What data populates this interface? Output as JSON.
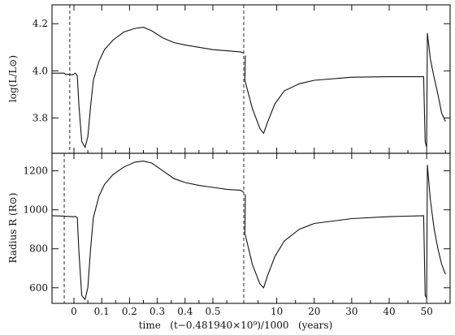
{
  "chart_data": [
    {
      "type": "line",
      "panel": "top",
      "ylabel": "log(L/L⊙)",
      "ylim": [
        3.65,
        4.28
      ],
      "yticks": [
        3.8,
        4.0,
        4.2
      ],
      "ytick_labels": [
        "3.8",
        "4.0",
        "4.2"
      ],
      "series": [
        {
          "segment": "early",
          "x": [
            -0.08,
            -0.035,
            -0.03,
            -0.015,
            -0.005,
            0.005,
            0.012,
            0.018,
            0.028,
            0.04,
            0.05,
            0.06,
            0.07,
            0.09,
            0.11,
            0.14,
            0.18,
            0.22,
            0.25,
            0.28,
            0.32,
            0.36,
            0.4,
            0.45,
            0.5,
            0.55,
            0.6,
            0.64
          ],
          "values": [
            3.99,
            3.99,
            3.985,
            3.985,
            3.983,
            3.99,
            3.98,
            3.85,
            3.7,
            3.675,
            3.72,
            3.85,
            3.96,
            4.04,
            4.09,
            4.13,
            4.165,
            4.18,
            4.185,
            4.17,
            4.14,
            4.12,
            4.11,
            4.1,
            4.09,
            4.085,
            4.08,
            4.075
          ]
        },
        {
          "segment": "late",
          "x": [
            0.0,
            1.5,
            3.5,
            5.5,
            6.5,
            7.5,
            9.5,
            12,
            16,
            20,
            30,
            40,
            49.2,
            49.6,
            50.0,
            50.2,
            51,
            52,
            53,
            54,
            55
          ],
          "values": [
            4.065,
            3.96,
            3.84,
            3.755,
            3.735,
            3.78,
            3.86,
            3.915,
            3.945,
            3.96,
            3.973,
            3.975,
            3.975,
            3.7,
            3.675,
            4.16,
            4.05,
            3.97,
            3.9,
            3.82,
            3.785
          ]
        }
      ]
    },
    {
      "type": "line",
      "panel": "bottom",
      "ylabel": "Radius R (R⊙)",
      "ylim": [
        520,
        1290
      ],
      "yticks": [
        600,
        800,
        1000,
        1200
      ],
      "ytick_labels": [
        "600",
        "800",
        "1000",
        "1200"
      ],
      "series": [
        {
          "segment": "early",
          "x": [
            -0.08,
            -0.035,
            -0.03,
            -0.015,
            -0.005,
            0.005,
            0.012,
            0.018,
            0.028,
            0.04,
            0.05,
            0.06,
            0.07,
            0.09,
            0.11,
            0.14,
            0.18,
            0.22,
            0.25,
            0.28,
            0.32,
            0.36,
            0.4,
            0.45,
            0.5,
            0.55,
            0.6,
            0.64
          ],
          "values": [
            970,
            968,
            966,
            966,
            964,
            966,
            960,
            780,
            560,
            540,
            600,
            800,
            960,
            1070,
            1130,
            1180,
            1220,
            1245,
            1250,
            1240,
            1200,
            1160,
            1140,
            1125,
            1115,
            1105,
            1100,
            1090
          ]
        },
        {
          "segment": "late",
          "x": [
            0.0,
            1.5,
            3.5,
            5.5,
            6.5,
            7.5,
            9.5,
            12,
            16,
            20,
            30,
            40,
            49.2,
            49.6,
            50.0,
            50.2,
            51,
            52,
            53,
            54,
            55
          ],
          "values": [
            1080,
            880,
            720,
            620,
            600,
            660,
            760,
            840,
            900,
            930,
            955,
            965,
            970,
            560,
            550,
            1230,
            1050,
            900,
            800,
            720,
            670
          ]
        }
      ]
    }
  ],
  "x_axis": {
    "label": "time   (t−0.481940×10⁹)/1000   (years)",
    "ticks_left": [
      0.0,
      0.1,
      0.2,
      0.3,
      0.4,
      0.5
    ],
    "tick_labels_left": [
      "0",
      "0.1",
      "0.2",
      "0.3",
      "0.4",
      "0.5"
    ],
    "ticks_right": [
      10,
      20,
      30,
      40,
      50
    ],
    "tick_labels_right": [
      "10",
      "20",
      "30",
      "40",
      "50"
    ]
  },
  "markers": {
    "dashed_verticals": [
      {
        "panel": "top",
        "x_left": -0.015
      },
      {
        "panel": "bottom",
        "x_left": -0.035
      },
      {
        "panel": "both",
        "break_between": true
      }
    ]
  }
}
